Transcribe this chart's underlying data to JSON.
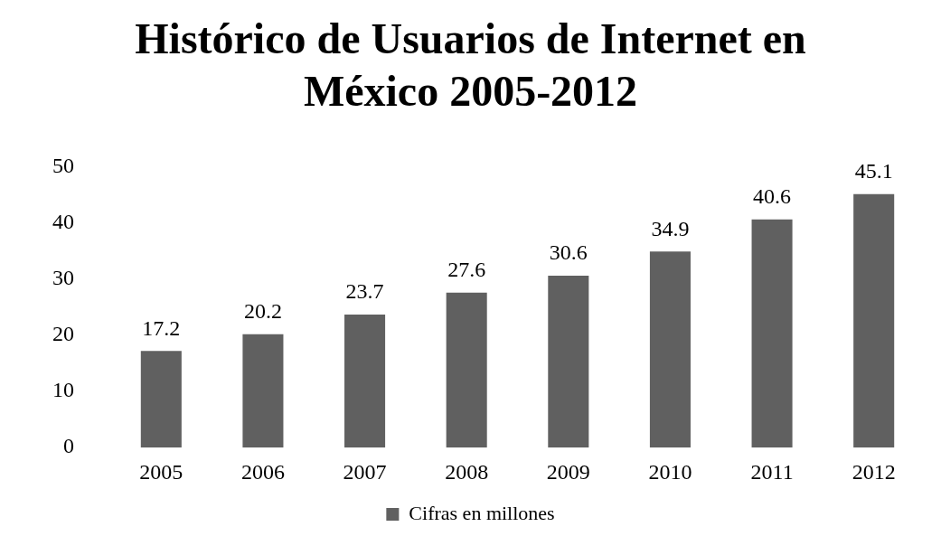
{
  "chart_data": {
    "type": "bar",
    "title": "Histórico de Usuarios de Internet en México 2005-2012",
    "categories": [
      "2005",
      "2006",
      "2007",
      "2008",
      "2009",
      "2010",
      "2011",
      "2012"
    ],
    "series": [
      {
        "name": "Cifras en millones",
        "color": "#606060",
        "values": [
          17.2,
          20.2,
          23.7,
          27.6,
          30.6,
          34.9,
          40.6,
          45.1
        ]
      }
    ],
    "ylim": [
      0,
      50
    ],
    "yticks": [
      0,
      10,
      20,
      30,
      40,
      50
    ],
    "grid": false,
    "legend": "bottom",
    "data_labels": true
  }
}
